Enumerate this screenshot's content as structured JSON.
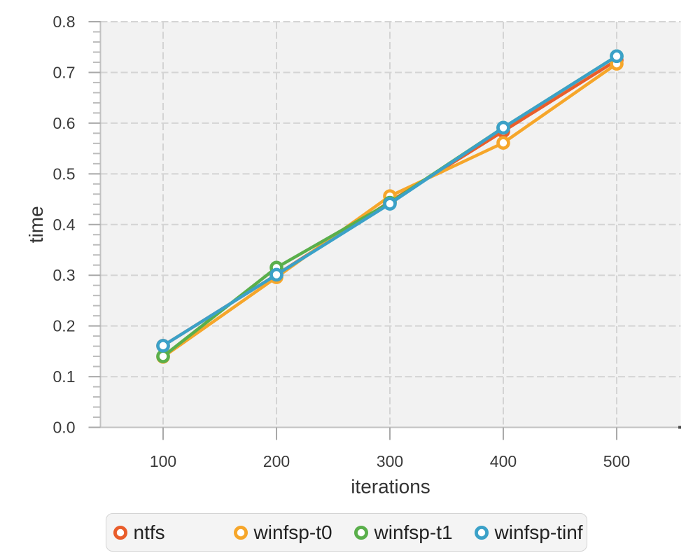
{
  "chart_data": {
    "type": "line",
    "title": "",
    "xlabel": "iterations",
    "ylabel": "time",
    "x": [
      100,
      200,
      300,
      400,
      500
    ],
    "series": [
      {
        "name": "ntfs",
        "color": "#e95d2b",
        "values": [
          0.161,
          0.301,
          0.445,
          0.584,
          0.724
        ]
      },
      {
        "name": "winfsp-t0",
        "color": "#f6a62a",
        "values": [
          0.139,
          0.296,
          0.456,
          0.561,
          0.717
        ]
      },
      {
        "name": "winfsp-t1",
        "color": "#5aaf4b",
        "values": [
          0.14,
          0.315,
          0.443,
          0.591,
          0.732
        ]
      },
      {
        "name": "winfsp-tinf",
        "color": "#3ba1c8",
        "values": [
          0.161,
          0.301,
          0.441,
          0.591,
          0.732
        ]
      }
    ],
    "x_ticks": [
      100,
      200,
      300,
      400,
      500
    ],
    "y_ticks": [
      0.0,
      0.1,
      0.2,
      0.3,
      0.4,
      0.5,
      0.6,
      0.7,
      0.8
    ],
    "y_tick_labels": [
      "0.0",
      "0.1",
      "0.2",
      "0.3",
      "0.4",
      "0.5",
      "0.6",
      "0.7",
      "0.8"
    ],
    "x_tick_labels": [
      "100",
      "200",
      "300",
      "400",
      "500"
    ],
    "y_minor_step": 0.02,
    "xlim": [
      44.75,
      556.5
    ],
    "ylim": [
      0.0,
      0.8
    ],
    "grid": true,
    "legend_position": "bottom",
    "legend": [
      "ntfs",
      "winfsp-t0",
      "winfsp-t1",
      "winfsp-tinf"
    ],
    "colors": {
      "plot_background": "#f2f2f2",
      "page_background": "#ffffff",
      "gridline": "#d4d4d4",
      "axis_line": "#c2c2c2",
      "major_tick": "#a9a9a9",
      "minor_tick": "#bcbcbc",
      "tick_label": "#3a3a3a",
      "axis_title": "#333333",
      "marker_fill": "#ffffff",
      "legend_background": "#f4f4f4",
      "legend_border": "#d5d5d5",
      "axis_end_cap": "#4d4d4d"
    }
  }
}
